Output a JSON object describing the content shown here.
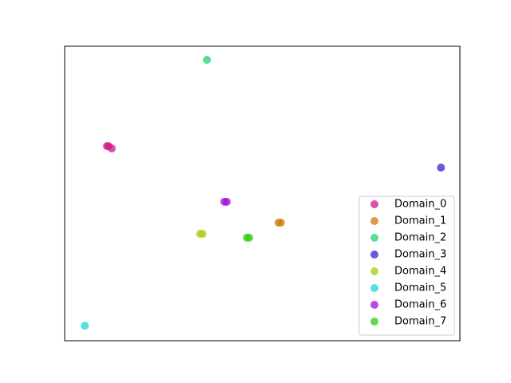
{
  "chart_data": {
    "type": "scatter",
    "xlim": [
      0,
      100
    ],
    "ylim": [
      0,
      100
    ],
    "legend": "lower right",
    "series": [
      {
        "name": "Domain_0",
        "color": "#cc1a88",
        "x": [
          10.7,
          11.9,
          11.1
        ],
        "y": [
          66.1,
          65.3,
          66.1
        ]
      },
      {
        "name": "Domain_1",
        "color": "#d07a0a",
        "x": [
          54.1,
          54.7
        ],
        "y": [
          40.1,
          40.1
        ]
      },
      {
        "name": "Domain_2",
        "color": "#25d070",
        "x": [
          36.0
        ],
        "y": [
          95.4
        ]
      },
      {
        "name": "Domain_3",
        "color": "#3a20d0",
        "x": [
          95.2
        ],
        "y": [
          58.8
        ]
      },
      {
        "name": "Domain_4",
        "color": "#a8cc10",
        "x": [
          34.3,
          34.9
        ],
        "y": [
          36.3,
          36.3
        ]
      },
      {
        "name": "Domain_5",
        "color": "#20d4d4",
        "x": [
          5.1
        ],
        "y": [
          5.1
        ]
      },
      {
        "name": "Domain_6",
        "color": "#a010d0",
        "x": [
          40.4,
          41.0
        ],
        "y": [
          47.2,
          47.2
        ]
      },
      {
        "name": "Domain_7",
        "color": "#30cc10",
        "x": [
          46.1,
          46.7
        ],
        "y": [
          35.0,
          35.0
        ]
      }
    ]
  }
}
